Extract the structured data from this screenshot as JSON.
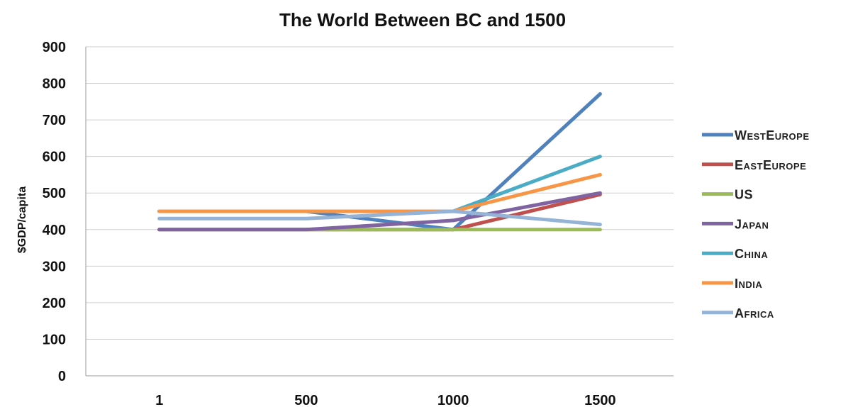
{
  "chart_data": {
    "type": "line",
    "title": "The World Between BC and 1500",
    "ylabel": "$GDP/capita",
    "xlabel": "",
    "categories": [
      "1",
      "500",
      "1000",
      "1500"
    ],
    "ylim": [
      0,
      900
    ],
    "yticks": [
      0,
      100,
      200,
      300,
      400,
      500,
      600,
      700,
      800,
      900
    ],
    "grid": true,
    "legend_position": "right",
    "series": [
      {
        "name": "WestEurope",
        "values": [
          450,
          450,
          400,
          771
        ],
        "color": "#4f81bd"
      },
      {
        "name": "EastEurope",
        "values": [
          400,
          400,
          400,
          496
        ],
        "color": "#c0504d"
      },
      {
        "name": "US",
        "values": [
          400,
          400,
          400,
          400
        ],
        "color": "#9bbb59"
      },
      {
        "name": "Japan",
        "values": [
          400,
          400,
          425,
          500
        ],
        "color": "#8064a2"
      },
      {
        "name": "China",
        "values": [
          450,
          450,
          450,
          600
        ],
        "color": "#4bacc6"
      },
      {
        "name": "India",
        "values": [
          450,
          450,
          450,
          550
        ],
        "color": "#f79646"
      },
      {
        "name": "Africa",
        "values": [
          430,
          430,
          450,
          414
        ],
        "color": "#95b3d7"
      }
    ]
  }
}
